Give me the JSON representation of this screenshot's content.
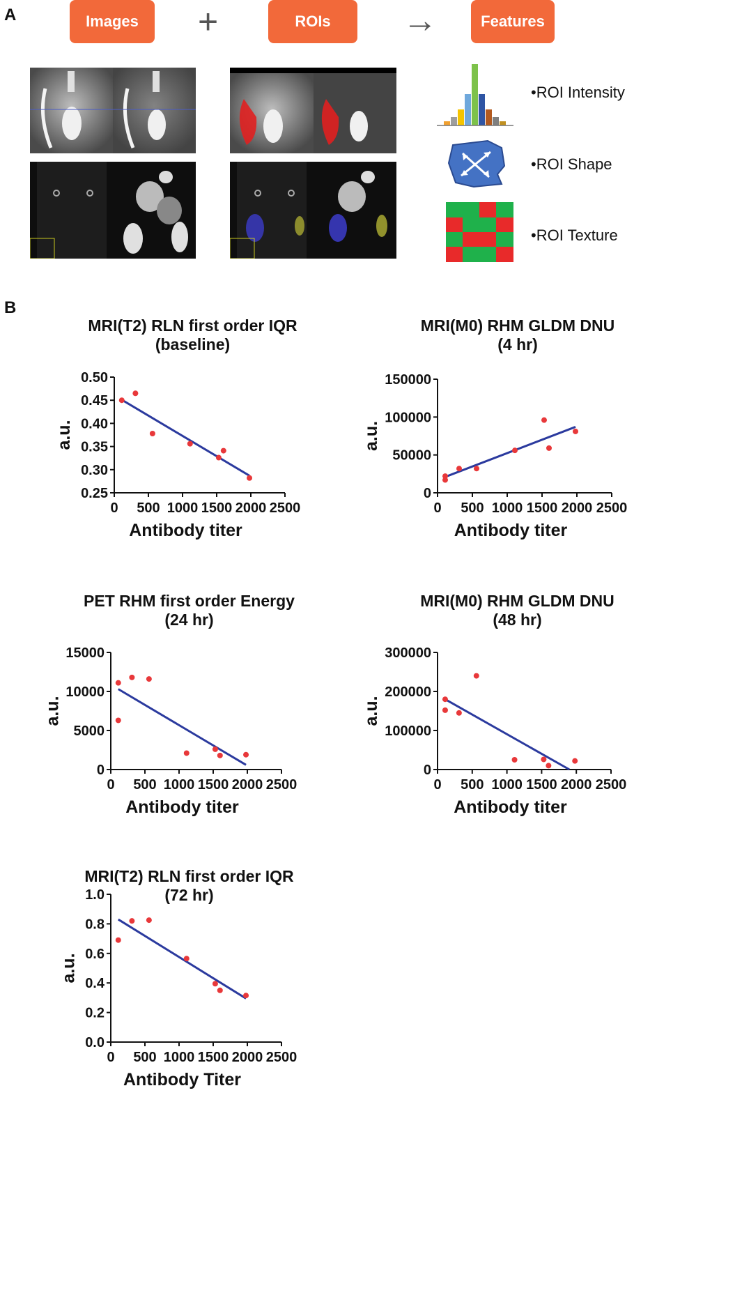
{
  "panel_labels": {
    "a": "A",
    "b": "B"
  },
  "workflow": {
    "step1": "Images",
    "op1": "+",
    "step2": "ROIs",
    "op2": "→",
    "step3": "Features"
  },
  "features": [
    {
      "label": "•ROI Intensity",
      "icon": "histogram-icon"
    },
    {
      "label": "•ROI Shape",
      "icon": "shape-blob-icon"
    },
    {
      "label": "•ROI Texture",
      "icon": "texture-grid-icon"
    }
  ],
  "colors": {
    "accent": "#f2693a",
    "point": "#e8383a",
    "fit_line": "#2b3a9e",
    "roi_red": "#e02020",
    "roi_blue": "#3a3ac0",
    "roi_yellow": "#a0a030",
    "texture_green": "#1fb14b",
    "texture_red": "#e82a2a",
    "shape_blue": "#4472c4"
  },
  "chart_data": [
    {
      "type": "scatter",
      "title": [
        "MRI(T2) RLN first order IQR",
        "(baseline)"
      ],
      "xlabel": "Antibody titer",
      "ylabel": "a.u.",
      "xlim": [
        0,
        2500
      ],
      "ylim": [
        0.25,
        0.5
      ],
      "xticks": [
        "0",
        "500",
        "1000",
        "1500",
        "2000",
        "2500"
      ],
      "yticks": [
        "0.25",
        "0.30",
        "0.35",
        "0.40",
        "0.45",
        "0.50"
      ],
      "points": [
        [
          110,
          0.45
        ],
        [
          310,
          0.465
        ],
        [
          560,
          0.378
        ],
        [
          1110,
          0.356
        ],
        [
          1530,
          0.326
        ],
        [
          1600,
          0.341
        ],
        [
          1980,
          0.282
        ]
      ],
      "fit": [
        [
          110,
          0.451
        ],
        [
          1980,
          0.287
        ]
      ]
    },
    {
      "type": "scatter",
      "title": [
        "MRI(M0) RHM GLDM DNU",
        "(4 hr)"
      ],
      "xlabel": "Antibody titer",
      "ylabel": "a.u.",
      "xlim": [
        0,
        2500
      ],
      "ylim": [
        0,
        150000
      ],
      "xticks": [
        "0",
        "500",
        "1000",
        "1500",
        "2000",
        "2500"
      ],
      "yticks": [
        "0",
        "50000",
        "100000",
        "150000"
      ],
      "points": [
        [
          110,
          22000
        ],
        [
          110,
          17000
        ],
        [
          310,
          32000
        ],
        [
          560,
          32000
        ],
        [
          1110,
          56000
        ],
        [
          1530,
          96000
        ],
        [
          1600,
          59000
        ],
        [
          1980,
          81000
        ]
      ],
      "fit": [
        [
          110,
          21000
        ],
        [
          1980,
          87000
        ]
      ]
    },
    {
      "type": "scatter",
      "title": [
        "PET RHM first order Energy",
        "(24 hr)"
      ],
      "xlabel": "Antibody titer",
      "ylabel": "a.u.",
      "xlim": [
        0,
        2500
      ],
      "ylim": [
        0,
        15000
      ],
      "xticks": [
        "0",
        "500",
        "1000",
        "1500",
        "2000",
        "2500"
      ],
      "yticks": [
        "0",
        "5000",
        "10000",
        "15000"
      ],
      "points": [
        [
          110,
          11100
        ],
        [
          110,
          6300
        ],
        [
          310,
          11800
        ],
        [
          560,
          11600
        ],
        [
          1110,
          2100
        ],
        [
          1530,
          2600
        ],
        [
          1600,
          1800
        ],
        [
          1980,
          1900
        ]
      ],
      "fit": [
        [
          110,
          10300
        ],
        [
          1980,
          600
        ]
      ]
    },
    {
      "type": "scatter",
      "title": [
        "MRI(M0) RHM GLDM DNU",
        "(48 hr)"
      ],
      "xlabel": "Antibody titer",
      "ylabel": "a.u.",
      "xlim": [
        0,
        2500
      ],
      "ylim": [
        0,
        300000
      ],
      "xticks": [
        "0",
        "500",
        "1000",
        "1500",
        "2000",
        "2500"
      ],
      "yticks": [
        "0",
        "100000",
        "200000",
        "300000"
      ],
      "points": [
        [
          110,
          180000
        ],
        [
          110,
          152000
        ],
        [
          310,
          145000
        ],
        [
          560,
          240000
        ],
        [
          1110,
          25000
        ],
        [
          1530,
          26000
        ],
        [
          1600,
          10000
        ],
        [
          1980,
          22000
        ]
      ],
      "fit": [
        [
          110,
          180000
        ],
        [
          1900,
          0
        ]
      ]
    },
    {
      "type": "scatter",
      "title": [
        "MRI(T2) RLN first order IQR",
        "(72 hr)"
      ],
      "xlabel": "Antibody Titer",
      "ylabel": "a.u.",
      "xlim": [
        0,
        2500
      ],
      "ylim": [
        0,
        1.0
      ],
      "xticks": [
        "0",
        "500",
        "1000",
        "1500",
        "2000",
        "2500"
      ],
      "yticks": [
        "0.0",
        "0.2",
        "0.4",
        "0.6",
        "0.8",
        "1.0"
      ],
      "points": [
        [
          110,
          0.69
        ],
        [
          310,
          0.82
        ],
        [
          560,
          0.825
        ],
        [
          1110,
          0.565
        ],
        [
          1530,
          0.395
        ],
        [
          1600,
          0.35
        ],
        [
          1980,
          0.315
        ]
      ],
      "fit": [
        [
          110,
          0.83
        ],
        [
          1980,
          0.295
        ]
      ]
    }
  ]
}
